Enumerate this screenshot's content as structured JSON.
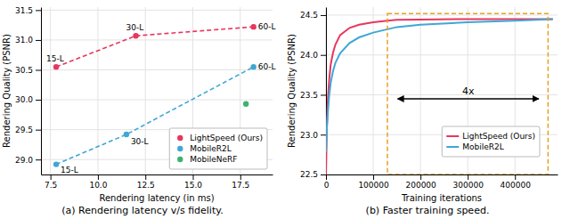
{
  "chart_data": [
    {
      "type": "line",
      "title": "(a) Rendering latency v/s fidelity.",
      "x_label": "Rendering latency (in ms)",
      "y_label": "Rendering Quality (PSNR)",
      "series": [
        {
          "name": "LightSpeed (Ours)",
          "color": "#e8365d",
          "marker": "circle",
          "line_style": "dashed",
          "x": [
            7.8,
            12.0,
            18.2
          ],
          "values": [
            30.55,
            31.07,
            31.22
          ],
          "labels": [
            "15-L",
            "30-L",
            "60-L"
          ]
        },
        {
          "name": "MobileR2L",
          "color": "#3fa7d6",
          "marker": "circle",
          "line_style": "dashed",
          "x": [
            7.8,
            11.5,
            18.2
          ],
          "values": [
            28.92,
            29.42,
            30.55
          ],
          "labels": [
            "15-L",
            "30-L",
            "60-L"
          ]
        },
        {
          "name": "MobileNeRF",
          "type": "scatter",
          "color": "#3cb371",
          "marker": "circle",
          "x": [
            17.8
          ],
          "values": [
            29.93
          ]
        }
      ],
      "xlim": [
        7.0,
        19.2
      ],
      "ylim": [
        28.75,
        31.55
      ],
      "xticks": [
        7.5,
        {
          "value": 10.0,
          "label": "10.0"
        },
        12.5,
        {
          "value": 15.0,
          "label": "15.0"
        },
        17.5
      ],
      "yticks": [
        {
          "value": 29.0,
          "label": "29.0"
        },
        29.5,
        {
          "value": 30.0,
          "label": "30.0"
        },
        30.5,
        {
          "value": 31.0,
          "label": "31.0"
        },
        31.5
      ],
      "grid": true,
      "legend": "lower right"
    },
    {
      "type": "line",
      "title": "(b) Faster training speed.",
      "x_label": "Training iterations",
      "y_label": "Rendering Quality (PSNR)",
      "series": [
        {
          "name": "LightSpeed (Ours)",
          "color": "#e8365d",
          "x": [
            0,
            500,
            1000,
            2000,
            4000,
            7000,
            10000,
            15000,
            20000,
            30000,
            50000,
            70000,
            100000,
            130000,
            150000,
            200000,
            300000,
            400000,
            480000
          ],
          "values": [
            22.5,
            22.65,
            22.82,
            23.1,
            23.45,
            23.7,
            23.88,
            24.03,
            24.13,
            24.25,
            24.34,
            24.38,
            24.41,
            24.43,
            24.44,
            24.445,
            24.45,
            24.45,
            24.45
          ]
        },
        {
          "name": "MobileR2L",
          "color": "#3fa7d6",
          "x": [
            0,
            500,
            1000,
            2000,
            4000,
            7000,
            10000,
            15000,
            20000,
            30000,
            50000,
            70000,
            100000,
            150000,
            200000,
            300000,
            400000,
            480000
          ],
          "values": [
            22.78,
            22.85,
            22.95,
            23.1,
            23.28,
            23.5,
            23.65,
            23.8,
            23.9,
            24.02,
            24.15,
            24.22,
            24.28,
            24.35,
            24.38,
            24.41,
            24.43,
            24.45
          ]
        }
      ],
      "xlim": [
        0,
        490000
      ],
      "ylim": [
        22.5,
        24.6
      ],
      "xticks": [
        0,
        100000,
        200000,
        300000,
        400000
      ],
      "yticks": [
        22.5,
        {
          "value": 23.0,
          "label": "23.0"
        },
        23.5,
        {
          "value": 24.0,
          "label": "24.0"
        },
        24.5
      ],
      "annotations": [
        {
          "type": "box",
          "x": [
            130000,
            470000
          ],
          "y": [
            22.5,
            24.52
          ],
          "color": "#e8a020",
          "line_style": "dashed"
        },
        {
          "type": "arrow",
          "text": "4x",
          "x": [
            152000,
            450000
          ],
          "y": 23.45
        }
      ],
      "grid": true,
      "legend": "lower right"
    }
  ]
}
